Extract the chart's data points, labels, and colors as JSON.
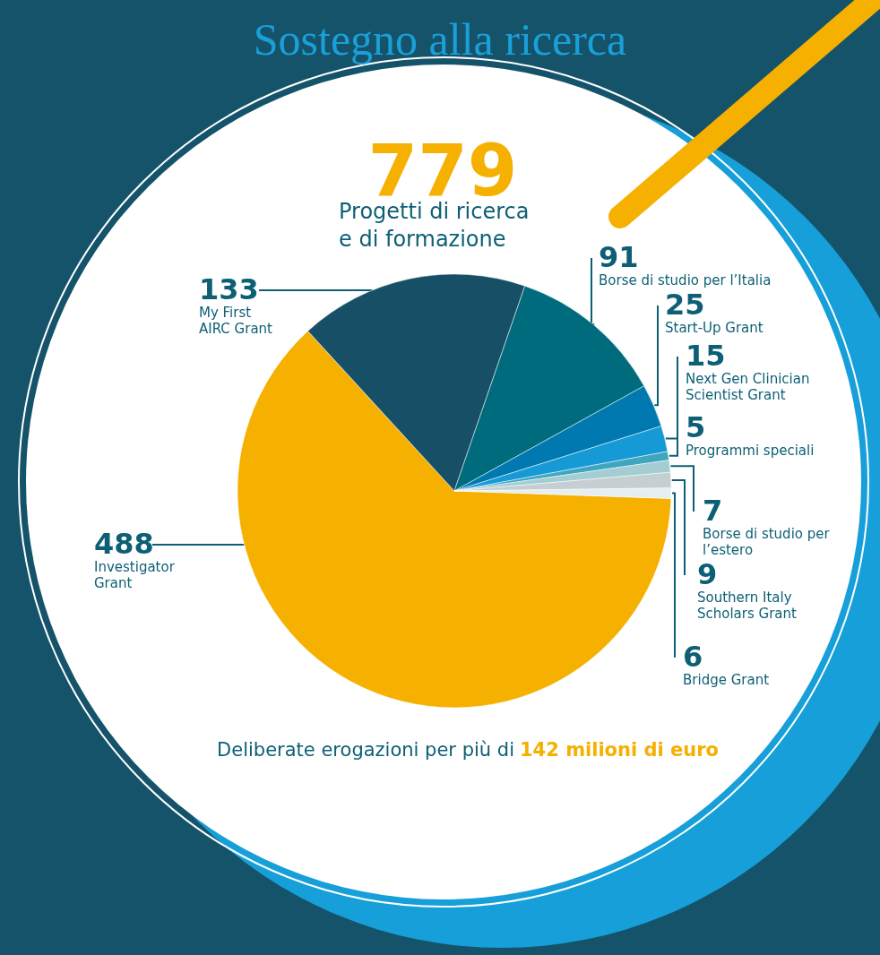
{
  "chart_data": {
    "type": "pie",
    "title": "Sostegno alla ricerca",
    "annotations": [
      "779",
      "Progetti di ricerca\ne di formazione",
      "Deliberate erogazioni per più di",
      "142 milioni di euro"
    ],
    "categories": [
      "Investigator Grant",
      "My First AIRC Grant",
      "Borse di studio per l’Italia",
      "Start-Up Grant",
      "Next Gen Clinician Scientist Grant",
      "Programmi speciali",
      "Borse di studio per l’estero",
      "Southern Italy Scholars Grant",
      "Bridge Grant"
    ],
    "values": [
      488,
      133,
      91,
      25,
      15,
      5,
      7,
      9,
      6
    ],
    "colors": [
      "#f5b000",
      "#164f66",
      "#006b7d",
      "#0079b0",
      "#159ad6",
      "#3fa6c0",
      "#a3cdd3",
      "#c5cfd2",
      "#e6eeef"
    ],
    "data_labels": true
  }
}
